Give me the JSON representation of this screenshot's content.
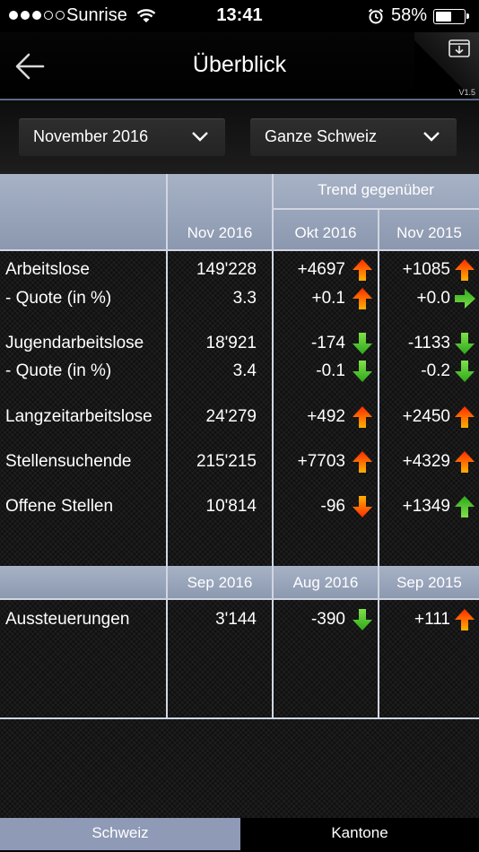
{
  "status": {
    "carrier": "Sunrise",
    "time": "13:41",
    "battery": "58%",
    "battery_level": 0.58
  },
  "nav": {
    "title": "Überblick",
    "version": "V1.5"
  },
  "filters": {
    "period": "November 2016",
    "region": "Ganze Schweiz"
  },
  "table1": {
    "group_header": "Trend gegenüber",
    "columns": [
      "Nov 2016",
      "Okt 2016",
      "Nov 2015"
    ],
    "rows": [
      {
        "label": "Arbeitslose",
        "value": "149'228",
        "t1": "+4697",
        "a1": "up",
        "t2": "+1085",
        "a2": "up"
      },
      {
        "label": "- Quote (in %)",
        "value": "3.3",
        "t1": "+0.1",
        "a1": "up",
        "t2": "+0.0",
        "a2": "right"
      },
      {
        "label": "Jugendarbeitslose",
        "value": "18'921",
        "t1": "-174",
        "a1": "down",
        "t2": "-1133",
        "a2": "down"
      },
      {
        "label": "- Quote (in %)",
        "value": "3.4",
        "t1": "-0.1",
        "a1": "down",
        "t2": "-0.2",
        "a2": "down"
      },
      {
        "label": "Langzeitarbeitslose",
        "value": "24'279",
        "t1": "+492",
        "a1": "up",
        "t2": "+2450",
        "a2": "up"
      },
      {
        "label": "Stellensuchende",
        "value": "215'215",
        "t1": "+7703",
        "a1": "up",
        "t2": "+4329",
        "a2": "up"
      },
      {
        "label": "Offene Stellen",
        "value": "10'814",
        "t1": "-96",
        "a1": "down-red",
        "t2": "+1349",
        "a2": "up-green"
      }
    ]
  },
  "table2": {
    "columns": [
      "Sep 2016",
      "Aug 2016",
      "Sep 2015"
    ],
    "rows": [
      {
        "label": "Aussteuerungen",
        "value": "3'144",
        "t1": "-390",
        "a1": "down",
        "t2": "+111",
        "a2": "up"
      }
    ]
  },
  "tabs": [
    "Schweiz",
    "Kantone"
  ],
  "colors": {
    "header": "#96a2b8",
    "active_tab": "#8e9ab6",
    "up": "#ff6a00",
    "down": "#44c42a"
  }
}
